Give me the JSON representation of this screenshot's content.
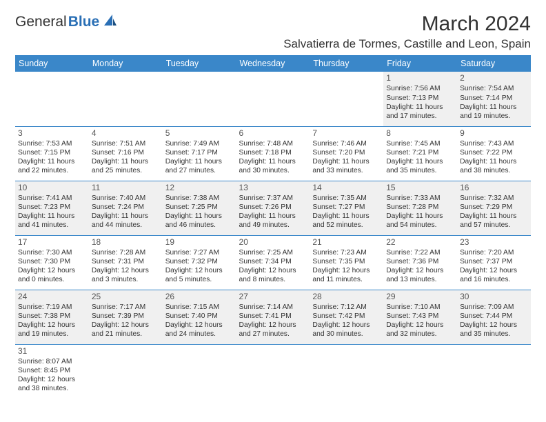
{
  "header": {
    "logo_text_1": "General",
    "logo_text_2": "Blue",
    "month_title": "March 2024",
    "location": "Salvatierra de Tormes, Castille and Leon, Spain"
  },
  "colors": {
    "header_bg": "#3a87c9",
    "header_text": "#ffffff",
    "row_shade": "#f0f0f0",
    "border": "#3a87c9",
    "logo_accent": "#2a6fb5",
    "text": "#333333"
  },
  "days_of_week": [
    "Sunday",
    "Monday",
    "Tuesday",
    "Wednesday",
    "Thursday",
    "Friday",
    "Saturday"
  ],
  "weeks": [
    [
      null,
      null,
      null,
      null,
      null,
      {
        "n": "1",
        "sunrise": "7:56 AM",
        "sunset": "7:13 PM",
        "daylight": "11 hours and 17 minutes."
      },
      {
        "n": "2",
        "sunrise": "7:54 AM",
        "sunset": "7:14 PM",
        "daylight": "11 hours and 19 minutes."
      }
    ],
    [
      {
        "n": "3",
        "sunrise": "7:53 AM",
        "sunset": "7:15 PM",
        "daylight": "11 hours and 22 minutes."
      },
      {
        "n": "4",
        "sunrise": "7:51 AM",
        "sunset": "7:16 PM",
        "daylight": "11 hours and 25 minutes."
      },
      {
        "n": "5",
        "sunrise": "7:49 AM",
        "sunset": "7:17 PM",
        "daylight": "11 hours and 27 minutes."
      },
      {
        "n": "6",
        "sunrise": "7:48 AM",
        "sunset": "7:18 PM",
        "daylight": "11 hours and 30 minutes."
      },
      {
        "n": "7",
        "sunrise": "7:46 AM",
        "sunset": "7:20 PM",
        "daylight": "11 hours and 33 minutes."
      },
      {
        "n": "8",
        "sunrise": "7:45 AM",
        "sunset": "7:21 PM",
        "daylight": "11 hours and 35 minutes."
      },
      {
        "n": "9",
        "sunrise": "7:43 AM",
        "sunset": "7:22 PM",
        "daylight": "11 hours and 38 minutes."
      }
    ],
    [
      {
        "n": "10",
        "sunrise": "7:41 AM",
        "sunset": "7:23 PM",
        "daylight": "11 hours and 41 minutes."
      },
      {
        "n": "11",
        "sunrise": "7:40 AM",
        "sunset": "7:24 PM",
        "daylight": "11 hours and 44 minutes."
      },
      {
        "n": "12",
        "sunrise": "7:38 AM",
        "sunset": "7:25 PM",
        "daylight": "11 hours and 46 minutes."
      },
      {
        "n": "13",
        "sunrise": "7:37 AM",
        "sunset": "7:26 PM",
        "daylight": "11 hours and 49 minutes."
      },
      {
        "n": "14",
        "sunrise": "7:35 AM",
        "sunset": "7:27 PM",
        "daylight": "11 hours and 52 minutes."
      },
      {
        "n": "15",
        "sunrise": "7:33 AM",
        "sunset": "7:28 PM",
        "daylight": "11 hours and 54 minutes."
      },
      {
        "n": "16",
        "sunrise": "7:32 AM",
        "sunset": "7:29 PM",
        "daylight": "11 hours and 57 minutes."
      }
    ],
    [
      {
        "n": "17",
        "sunrise": "7:30 AM",
        "sunset": "7:30 PM",
        "daylight": "12 hours and 0 minutes."
      },
      {
        "n": "18",
        "sunrise": "7:28 AM",
        "sunset": "7:31 PM",
        "daylight": "12 hours and 3 minutes."
      },
      {
        "n": "19",
        "sunrise": "7:27 AM",
        "sunset": "7:32 PM",
        "daylight": "12 hours and 5 minutes."
      },
      {
        "n": "20",
        "sunrise": "7:25 AM",
        "sunset": "7:34 PM",
        "daylight": "12 hours and 8 minutes."
      },
      {
        "n": "21",
        "sunrise": "7:23 AM",
        "sunset": "7:35 PM",
        "daylight": "12 hours and 11 minutes."
      },
      {
        "n": "22",
        "sunrise": "7:22 AM",
        "sunset": "7:36 PM",
        "daylight": "12 hours and 13 minutes."
      },
      {
        "n": "23",
        "sunrise": "7:20 AM",
        "sunset": "7:37 PM",
        "daylight": "12 hours and 16 minutes."
      }
    ],
    [
      {
        "n": "24",
        "sunrise": "7:19 AM",
        "sunset": "7:38 PM",
        "daylight": "12 hours and 19 minutes."
      },
      {
        "n": "25",
        "sunrise": "7:17 AM",
        "sunset": "7:39 PM",
        "daylight": "12 hours and 21 minutes."
      },
      {
        "n": "26",
        "sunrise": "7:15 AM",
        "sunset": "7:40 PM",
        "daylight": "12 hours and 24 minutes."
      },
      {
        "n": "27",
        "sunrise": "7:14 AM",
        "sunset": "7:41 PM",
        "daylight": "12 hours and 27 minutes."
      },
      {
        "n": "28",
        "sunrise": "7:12 AM",
        "sunset": "7:42 PM",
        "daylight": "12 hours and 30 minutes."
      },
      {
        "n": "29",
        "sunrise": "7:10 AM",
        "sunset": "7:43 PM",
        "daylight": "12 hours and 32 minutes."
      },
      {
        "n": "30",
        "sunrise": "7:09 AM",
        "sunset": "7:44 PM",
        "daylight": "12 hours and 35 minutes."
      }
    ],
    [
      {
        "n": "31",
        "sunrise": "8:07 AM",
        "sunset": "8:45 PM",
        "daylight": "12 hours and 38 minutes."
      },
      null,
      null,
      null,
      null,
      null,
      null
    ]
  ],
  "labels": {
    "sunrise": "Sunrise: ",
    "sunset": "Sunset: ",
    "daylight": "Daylight: "
  }
}
